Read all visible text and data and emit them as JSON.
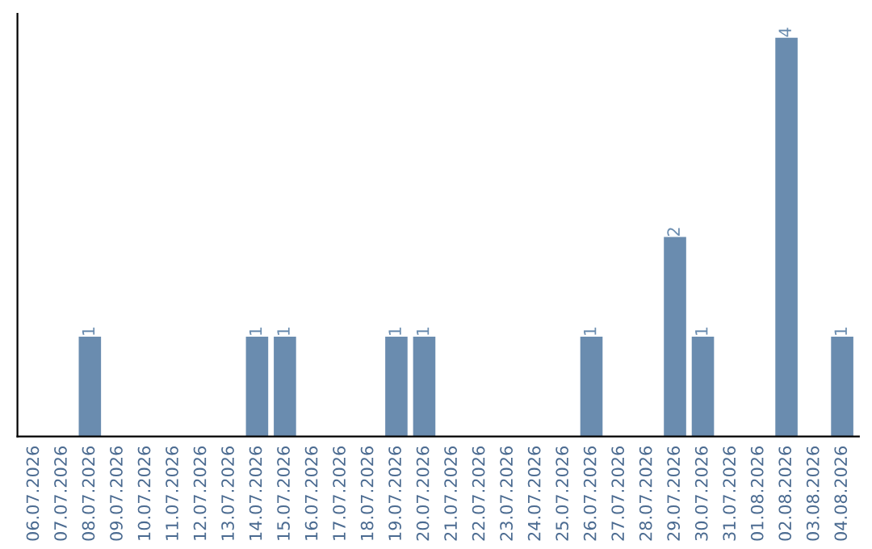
{
  "chart_data": {
    "type": "bar",
    "categories": [
      "06.07.2026",
      "07.07.2026",
      "08.07.2026",
      "09.07.2026",
      "10.07.2026",
      "11.07.2026",
      "12.07.2026",
      "13.07.2026",
      "14.07.2026",
      "15.07.2026",
      "16.07.2026",
      "17.07.2026",
      "18.07.2026",
      "19.07.2026",
      "20.07.2026",
      "21.07.2026",
      "22.07.2026",
      "23.07.2026",
      "24.07.2026",
      "25.07.2026",
      "26.07.2026",
      "27.07.2026",
      "28.07.2026",
      "29.07.2026",
      "30.07.2026",
      "31.07.2026",
      "01.08.2026",
      "02.08.2026",
      "03.08.2026",
      "04.08.2026"
    ],
    "values": [
      0,
      0,
      1,
      0,
      0,
      0,
      0,
      0,
      1,
      1,
      0,
      0,
      0,
      1,
      1,
      0,
      0,
      0,
      0,
      0,
      1,
      0,
      0,
      2,
      1,
      0,
      0,
      4,
      0,
      1
    ],
    "value_labels": [
      null,
      null,
      "1",
      null,
      null,
      null,
      null,
      null,
      "1",
      "1",
      null,
      null,
      null,
      "1",
      "1",
      null,
      null,
      null,
      null,
      null,
      "1",
      null,
      null,
      "2",
      "1",
      null,
      null,
      "4",
      null,
      "1"
    ],
    "color": "#6a8caf",
    "tick_labels": "x",
    "grid": false,
    "legend": false
  }
}
